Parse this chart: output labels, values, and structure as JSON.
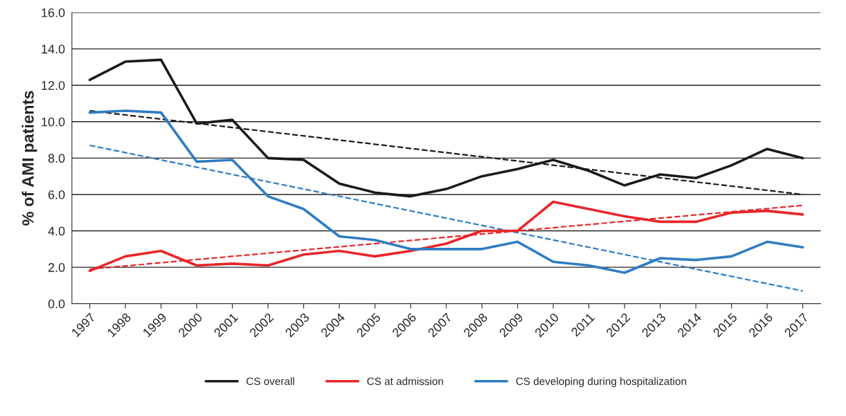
{
  "chart_data": {
    "type": "line",
    "ylabel": "% of AMI patients",
    "categories": [
      "1997",
      "1998",
      "1999",
      "2000",
      "2001",
      "2002",
      "2003",
      "2004",
      "2005",
      "2006",
      "2007",
      "2008",
      "2009",
      "2010",
      "2011",
      "2012",
      "2013",
      "2014",
      "2015",
      "2016",
      "2017"
    ],
    "series": [
      {
        "name": "CS overall",
        "color": "#1a1a1a",
        "values": [
          12.3,
          13.3,
          13.4,
          9.9,
          10.1,
          8.0,
          7.9,
          6.6,
          6.1,
          5.9,
          6.3,
          7.0,
          7.4,
          7.9,
          7.3,
          6.5,
          7.1,
          6.9,
          7.6,
          8.5,
          8.0
        ]
      },
      {
        "name": "CS at admission",
        "color": "#e8262a",
        "values": [
          1.8,
          2.6,
          2.9,
          2.1,
          2.2,
          2.1,
          2.7,
          2.9,
          2.6,
          2.9,
          3.3,
          4.0,
          4.0,
          5.6,
          5.2,
          4.8,
          4.5,
          4.5,
          5.0,
          5.1,
          4.9
        ]
      },
      {
        "name": "CS developing during hospitalization",
        "color": "#2e7cc1",
        "values": [
          10.5,
          10.6,
          10.5,
          7.8,
          7.9,
          5.9,
          5.2,
          3.7,
          3.5,
          3.0,
          3.0,
          3.0,
          3.4,
          2.3,
          2.1,
          1.7,
          2.5,
          2.4,
          2.6,
          3.4,
          3.1
        ]
      },
      {
        "type": "line",
        "line_style": "dashed",
        "color": "#1a1a1a",
        "values": [
          10.6,
          null,
          null,
          null,
          null,
          null,
          null,
          null,
          null,
          null,
          null,
          null,
          null,
          null,
          null,
          null,
          null,
          null,
          null,
          null,
          6.0
        ]
      },
      {
        "type": "line",
        "line_style": "dashed",
        "color": "#e8262a",
        "values": [
          1.9,
          null,
          null,
          null,
          null,
          null,
          null,
          null,
          null,
          null,
          null,
          null,
          null,
          null,
          null,
          null,
          null,
          null,
          null,
          null,
          5.4
        ]
      },
      {
        "type": "line",
        "line_style": "dashed",
        "color": "#2e7cc1",
        "values": [
          8.7,
          null,
          null,
          null,
          null,
          null,
          null,
          null,
          null,
          null,
          null,
          null,
          null,
          null,
          null,
          null,
          null,
          null,
          null,
          null,
          0.7
        ]
      }
    ],
    "ylim": [
      0,
      16
    ],
    "yticks": [
      {
        "value": 0,
        "label": "0.0"
      },
      {
        "value": 2,
        "label": "2.0"
      },
      {
        "value": 4,
        "label": "4.0"
      },
      {
        "value": 6,
        "label": "6.0"
      },
      {
        "value": 8,
        "label": "8.0"
      },
      {
        "value": 10,
        "label": "10.0"
      },
      {
        "value": 12,
        "label": "12.0"
      },
      {
        "value": 14,
        "label": "14.0"
      },
      {
        "value": 16,
        "label": "16.0"
      }
    ],
    "grid": "y",
    "legend": "bottom",
    "marker": "none",
    "line_style": "solid"
  }
}
